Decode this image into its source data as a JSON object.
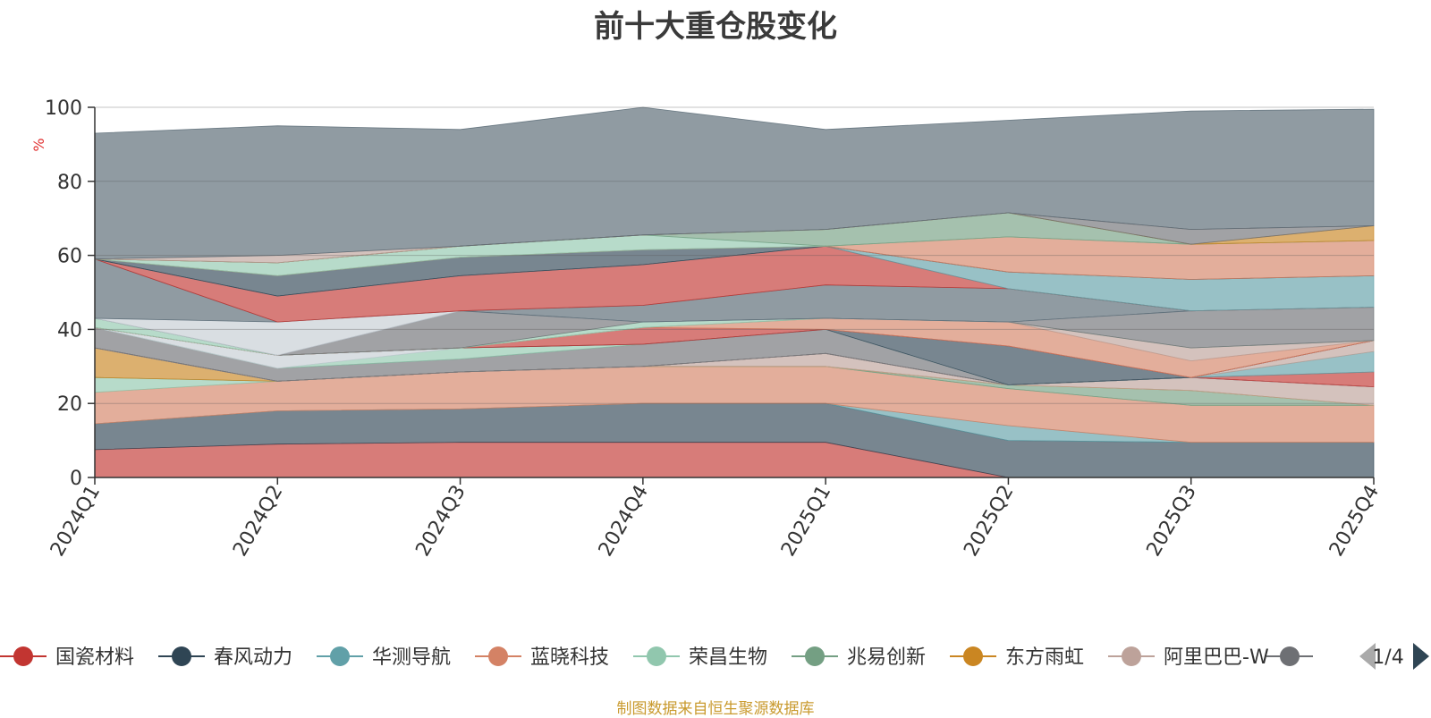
{
  "chart_data": {
    "type": "area",
    "stacked": true,
    "title": "前十大重仓股变化",
    "ylabel": "%",
    "source_note": "制图数据来自恒生聚源数据库",
    "ylim": [
      0,
      100
    ],
    "yticks": [
      0,
      20,
      40,
      60,
      80,
      100
    ],
    "grid": true,
    "legend_position": "bottom",
    "categories": [
      "2024Q1",
      "2024Q2",
      "2024Q3",
      "2024Q4",
      "2025Q1",
      "2025Q2",
      "2025Q3",
      "2025Q4"
    ],
    "series": [
      {
        "name": "国瓷材料",
        "color": "#c23531",
        "values": [
          7.5,
          9.0,
          9.5,
          9.5,
          9.5,
          0,
          0,
          0
        ]
      },
      {
        "name": "春风动力",
        "color": "#2f4554",
        "values": [
          7.0,
          9.0,
          9.0,
          10.5,
          10.5,
          10.0,
          9.5,
          9.5
        ]
      },
      {
        "name": "华测导航",
        "color": "#61a0a8",
        "values": [
          0,
          0,
          0,
          0,
          0,
          4.0,
          0,
          0
        ]
      },
      {
        "name": "蓝晓科技",
        "color": "#d48265",
        "values": [
          8.5,
          8.0,
          10.0,
          10.0,
          10.0,
          10.0,
          10.0,
          10.0
        ]
      },
      {
        "name": "荣昌生物",
        "color": "#91c7ae",
        "values": [
          4.0,
          0,
          0,
          0,
          0,
          0,
          0,
          0
        ]
      },
      {
        "name": "兆易创新",
        "color": "#749f83",
        "values": [
          0,
          0,
          0,
          0,
          0,
          1.0,
          4.0,
          0
        ]
      },
      {
        "name": "东方雨虹",
        "color": "#ca8622",
        "values": [
          8.0,
          0,
          0,
          0,
          0,
          0,
          0,
          0
        ]
      },
      {
        "name": "阿里巴巴-W",
        "color": "#bda29a",
        "values": [
          0,
          0,
          0,
          0,
          3.5,
          0,
          3.5,
          5.0
        ]
      },
      {
        "name": "",
        "color": "#6e7074",
        "values": [
          0,
          0,
          0,
          0,
          0,
          0,
          0,
          0
        ]
      },
      {
        "name": "",
        "color": "#546570",
        "values": [
          0,
          0,
          0,
          0,
          0,
          0,
          0,
          0
        ]
      },
      {
        "name": "",
        "color": "#c4ccd3",
        "values": [
          0,
          0,
          0,
          0,
          0,
          0,
          0,
          0
        ]
      },
      {
        "name": "",
        "color": "#c23531",
        "values": [
          0,
          0,
          0,
          0,
          0,
          0,
          0,
          4.0
        ]
      },
      {
        "name": "",
        "color": "#61a0a8",
        "values": [
          0,
          0,
          0,
          0,
          0,
          0,
          0,
          5.5
        ]
      },
      {
        "name": "",
        "color": "#bda29a",
        "values": [
          0,
          0,
          0,
          0,
          0,
          0,
          0,
          3.0
        ]
      },
      {
        "name": "",
        "color": "#6e7074",
        "values": [
          5.5,
          3.5,
          3.5,
          6.0,
          6.5,
          0,
          0,
          0
        ]
      },
      {
        "name": "",
        "color": "#91c7ae",
        "values": [
          0,
          0,
          3.0,
          0,
          0,
          0,
          0,
          0
        ]
      },
      {
        "name": "",
        "color": "#c4ccd3",
        "values": [
          0,
          3.5,
          0,
          0,
          0,
          0,
          0,
          0
        ]
      },
      {
        "name": "",
        "color": "#2f4554",
        "values": [
          0,
          0,
          0,
          0,
          0,
          10.5,
          0,
          0
        ]
      },
      {
        "name": "",
        "color": "#c23531",
        "values": [
          0,
          0,
          0,
          4.5,
          0,
          0,
          0,
          0
        ]
      },
      {
        "name": "",
        "color": "#d48265",
        "values": [
          0,
          0,
          0,
          0,
          3.0,
          6.5,
          4.5,
          0
        ]
      },
      {
        "name": "",
        "color": "#bda29a",
        "values": [
          0,
          0,
          0,
          0,
          0,
          0,
          3.5,
          0
        ]
      },
      {
        "name": "",
        "color": "#91c7ae",
        "values": [
          2.5,
          0,
          0,
          1.5,
          0,
          0,
          0,
          0
        ]
      },
      {
        "name": "",
        "color": "#6e7074",
        "values": [
          0,
          0,
          10.0,
          0,
          0,
          0,
          10.0,
          9.0
        ]
      },
      {
        "name": "",
        "color": "#c4ccd3",
        "values": [
          0,
          9.0,
          0,
          0,
          0,
          0,
          0,
          0
        ]
      },
      {
        "name": "",
        "color": "#546570",
        "values": [
          16.0,
          0,
          0,
          4.5,
          9.0,
          9.0,
          0,
          0
        ]
      },
      {
        "name": "",
        "color": "#c23531",
        "values": [
          0,
          7.0,
          9.5,
          11.0,
          10.5,
          0,
          0,
          0
        ]
      },
      {
        "name": "",
        "color": "#61a0a8",
        "values": [
          0,
          0,
          0,
          0,
          0,
          4.5,
          8.5,
          8.5
        ]
      },
      {
        "name": "",
        "color": "#2f4554",
        "values": [
          0,
          5.5,
          5.0,
          4.0,
          0,
          0,
          0,
          0
        ]
      },
      {
        "name": "",
        "color": "#d48265",
        "values": [
          0,
          0,
          0,
          0,
          0,
          9.5,
          9.5,
          9.5
        ]
      },
      {
        "name": "",
        "color": "#91c7ae",
        "values": [
          0,
          3.5,
          3.0,
          4.0,
          0,
          0,
          0,
          0
        ]
      },
      {
        "name": "",
        "color": "#749f83",
        "values": [
          0,
          0,
          0,
          0,
          4.5,
          6.5,
          0,
          0
        ]
      },
      {
        "name": "",
        "color": "#ca8622",
        "values": [
          0,
          0,
          0,
          0,
          0,
          0,
          0,
          4.0
        ]
      },
      {
        "name": "",
        "color": "#6e7074",
        "values": [
          0,
          0,
          0,
          0,
          0,
          0,
          4.0,
          0
        ]
      },
      {
        "name": "",
        "color": "#bda29a",
        "values": [
          0,
          2.0,
          0,
          0,
          0,
          0,
          0,
          0
        ]
      },
      {
        "name": "",
        "color": "#546570",
        "values": [
          34.0,
          35.0,
          31.5,
          34.5,
          27.0,
          25.0,
          32.0,
          31.5
        ]
      }
    ]
  },
  "legend": {
    "items": [
      {
        "name": "国瓷材料",
        "color": "#c23531"
      },
      {
        "name": "春风动力",
        "color": "#2f4554"
      },
      {
        "name": "华测导航",
        "color": "#61a0a8"
      },
      {
        "name": "蓝晓科技",
        "color": "#d48265"
      },
      {
        "name": "荣昌生物",
        "color": "#91c7ae"
      },
      {
        "name": "兆易创新",
        "color": "#749f83"
      },
      {
        "name": "东方雨虹",
        "color": "#ca8622"
      },
      {
        "name": "阿里巴巴-W",
        "color": "#bda29a"
      },
      {
        "name": "",
        "color": "#6e7074"
      }
    ],
    "page_indicator": "1/4",
    "prev_icon": "triangle-left-icon",
    "next_icon": "triangle-right-icon",
    "prev_color": "#aaaaaa",
    "next_color": "#2f4554"
  }
}
